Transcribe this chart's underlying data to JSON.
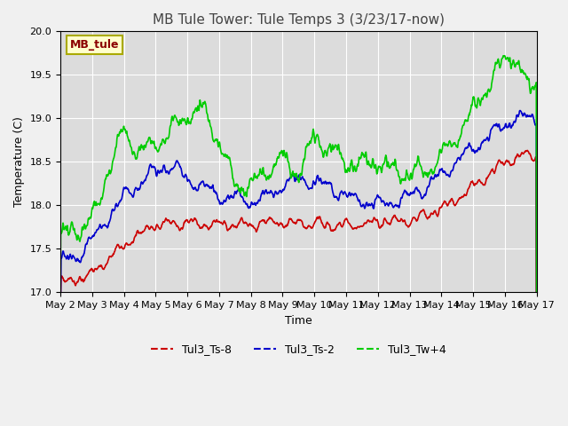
{
  "title": "MB Tule Tower: Tule Temps 3 (3/23/17-now)",
  "xlabel": "Time",
  "ylabel": "Temperature (C)",
  "ylim": [
    17.0,
    20.0
  ],
  "yticks": [
    17.0,
    17.5,
    18.0,
    18.5,
    19.0,
    19.5,
    20.0
  ],
  "xlim": [
    0,
    15
  ],
  "xtick_labels": [
    "May 2",
    "May 3",
    "May 4",
    "May 5",
    "May 6",
    "May 7",
    "May 8",
    "May 9",
    "May 10",
    "May 11",
    "May 12",
    "May 13",
    "May 14",
    "May 15",
    "May 16",
    "May 17"
  ],
  "xtick_positions": [
    0,
    1,
    2,
    3,
    4,
    5,
    6,
    7,
    8,
    9,
    10,
    11,
    12,
    13,
    14,
    15
  ],
  "bg_color": "#e8e8e8",
  "plot_bg": "#dcdcdc",
  "series": [
    {
      "label": "Tul3_Ts-8",
      "color": "#cc0000"
    },
    {
      "label": "Tul3_Ts-2",
      "color": "#0000cc"
    },
    {
      "label": "Tul3_Tw+4",
      "color": "#00cc00"
    }
  ],
  "watermark_text": "MB_tule",
  "watermark_color": "#8b0000",
  "watermark_bg": "#ffffcc",
  "watermark_border": "#aaaa00",
  "title_color": "#444444",
  "grid_color": "#ffffff",
  "title_fontsize": 11,
  "axis_fontsize": 9,
  "tick_fontsize": 8,
  "legend_fontsize": 9,
  "linewidth": 1.2
}
